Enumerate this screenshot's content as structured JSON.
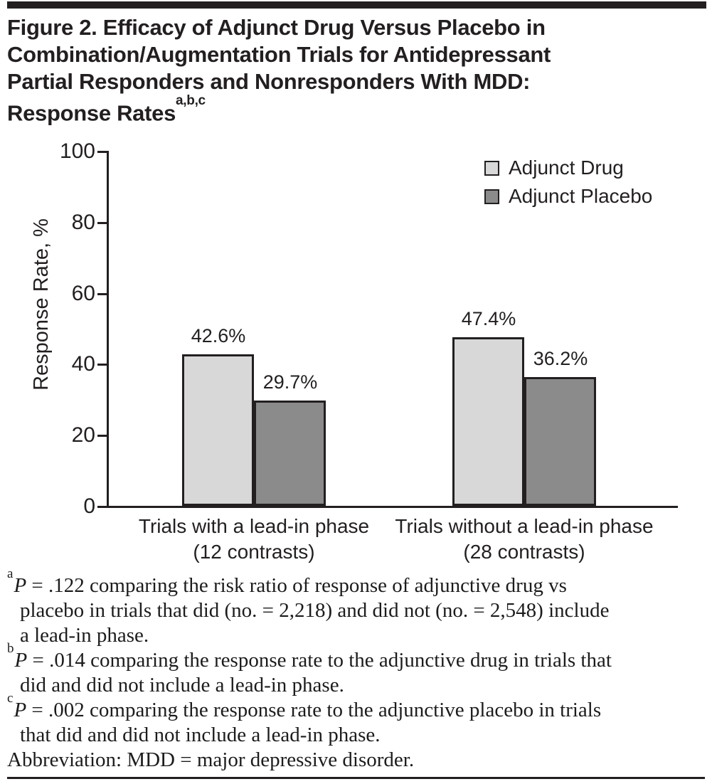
{
  "title": {
    "lines": [
      "Figure 2. Efficacy of Adjunct Drug Versus Placebo in",
      "Combination/Augmentation Trials for Antidepressant",
      "Partial Responders and Nonresponders With MDD:",
      "Response Rates"
    ],
    "superscript": "a,b,c"
  },
  "chart_data": {
    "type": "bar",
    "title": "",
    "xlabel": "",
    "ylabel": "Response Rate, %",
    "ylim": [
      0,
      100
    ],
    "yticks": [
      0,
      20,
      40,
      60,
      80,
      100
    ],
    "grid": false,
    "legend_position": "top-right",
    "categories": [
      {
        "line1": "Trials with a lead-in phase",
        "line2": "(12 contrasts)"
      },
      {
        "line1": "Trials without a lead-in phase",
        "line2": "(28 contrasts)"
      }
    ],
    "series": [
      {
        "name": "Adjunct Drug",
        "values": [
          42.6,
          47.4
        ],
        "labels": [
          "42.6%",
          "47.4%"
        ],
        "color": "#d8d8d8"
      },
      {
        "name": "Adjunct Placebo",
        "values": [
          29.7,
          36.2
        ],
        "labels": [
          "29.7%",
          "36.2%"
        ],
        "color": "#8c8b8b"
      }
    ]
  },
  "footnotes": [
    {
      "marker": "a",
      "p_symbol": "P",
      "first_line": " = .122 comparing the risk ratio of response of adjunctive drug vs",
      "continuation_lines": [
        "placebo in trials that did (no. = 2,218) and did not (no. = 2,548) include",
        "a lead-in phase."
      ]
    },
    {
      "marker": "b",
      "p_symbol": "P",
      "first_line": " = .014 comparing the response rate to the adjunctive drug in trials that",
      "continuation_lines": [
        "did and did not include a lead-in phase."
      ]
    },
    {
      "marker": "c",
      "p_symbol": "P",
      "first_line": " = .002 comparing the response rate to the adjunctive placebo in trials",
      "continuation_lines": [
        "that did and did not include a lead-in phase."
      ]
    }
  ],
  "abbreviation": "Abbreviation: MDD = major depressive disorder.",
  "colors": {
    "ink": "#231f20",
    "bar_drug": "#d8d8d8",
    "bar_placebo": "#8c8b8b"
  }
}
